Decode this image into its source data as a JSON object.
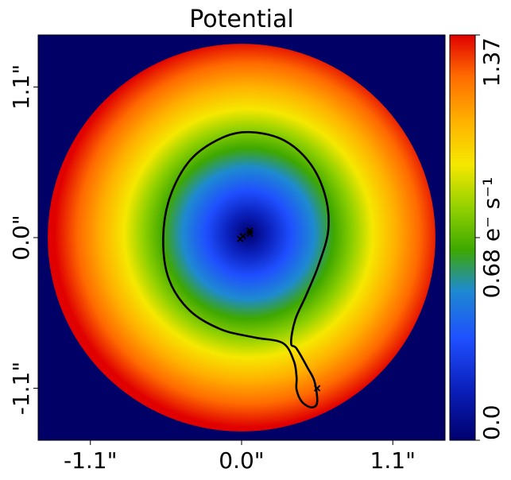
{
  "chart_data": {
    "type": "heatmap",
    "title": "Potential",
    "x_ticks": [
      "-1.1\"",
      "0.0\"",
      "1.1\""
    ],
    "x_tick_values": [
      -1.1,
      0.0,
      1.1
    ],
    "y_ticks": [
      "1.1\"",
      "0.0\"",
      "-1.1\""
    ],
    "y_tick_values": [
      1.1,
      0.0,
      -1.1
    ],
    "xlim": [
      -1.48,
      1.48
    ],
    "ylim": [
      -1.48,
      1.48
    ],
    "mask_radius": 1.41,
    "background_color": "#000066",
    "colormap": [
      "#00006e",
      "#1f4fff",
      "#1e8ad0",
      "#3ea800",
      "#8fd000",
      "#f5e800",
      "#ffb000",
      "#ff6a00",
      "#e00000"
    ],
    "field": {
      "center": [
        0.05,
        0.03
      ],
      "value_at_center": 0.0,
      "value_at_edge": 1.37,
      "description_units": "e- s^-1"
    },
    "colorbar": {
      "label": "0.68 e$^{-}$ s$^{-1}$",
      "label_text": "0.68 e⁻ s⁻¹",
      "min_label": "0.0",
      "max_label": "1.37",
      "min": 0.0,
      "max": 1.37
    },
    "critical_curve": [
      [
        0.07,
        0.77
      ],
      [
        0.31,
        0.71
      ],
      [
        0.5,
        0.54
      ],
      [
        0.61,
        0.3
      ],
      [
        0.63,
        0.05
      ],
      [
        0.56,
        -0.2
      ],
      [
        0.47,
        -0.42
      ],
      [
        0.39,
        -0.6
      ],
      [
        0.36,
        -0.77
      ],
      [
        0.4,
        -0.81
      ],
      [
        0.48,
        -0.95
      ],
      [
        0.53,
        -1.05
      ],
      [
        0.55,
        -1.2
      ],
      [
        0.51,
        -1.24
      ],
      [
        0.44,
        -1.2
      ],
      [
        0.4,
        -1.11
      ],
      [
        0.4,
        -1.02
      ],
      [
        0.38,
        -0.9
      ],
      [
        0.3,
        -0.77
      ],
      [
        0.1,
        -0.73
      ],
      [
        -0.15,
        -0.67
      ],
      [
        -0.38,
        -0.53
      ],
      [
        -0.53,
        -0.3
      ],
      [
        -0.57,
        0.0
      ],
      [
        -0.52,
        0.3
      ],
      [
        -0.37,
        0.57
      ],
      [
        -0.14,
        0.73
      ],
      [
        0.07,
        0.77
      ]
    ],
    "markers": [
      {
        "x": -0.01,
        "y": -0.01
      },
      {
        "x": 0.01,
        "y": 0.01
      },
      {
        "x": 0.06,
        "y": 0.05
      },
      {
        "x": 0.06,
        "y": 0.03
      },
      {
        "x": 0.55,
        "y": -1.1
      }
    ]
  }
}
